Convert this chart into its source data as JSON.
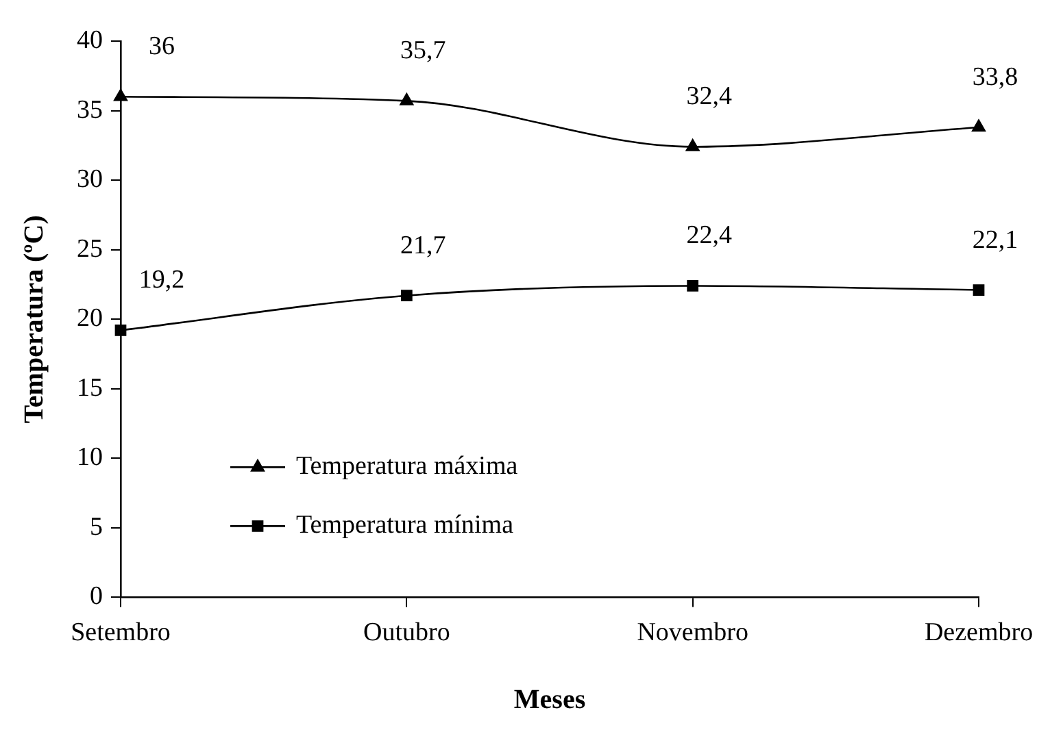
{
  "chart_data": {
    "type": "line",
    "xlabel": "Meses",
    "ylabel": "Temperatura (ºC)",
    "categories": [
      "Setembro",
      "Outubro",
      "Novembro",
      "Dezembro"
    ],
    "ylim": [
      0,
      40
    ],
    "yticks": [
      0,
      5,
      10,
      15,
      20,
      25,
      30,
      35,
      40
    ],
    "grid": false,
    "legend": "bottom left",
    "series": [
      {
        "name": "Temperatura máxima",
        "color": "#000000",
        "marker": "triangle",
        "values": [
          36,
          35.7,
          32.4,
          33.8
        ],
        "value_labels": [
          "36",
          "35,7",
          "32,4",
          "33,8"
        ]
      },
      {
        "name": "Temperatura mínima",
        "color": "#000000",
        "marker": "square",
        "values": [
          19.2,
          21.7,
          22.4,
          22.1
        ],
        "value_labels": [
          "19,2",
          "21,7",
          "22,4",
          "22,1"
        ]
      }
    ]
  }
}
